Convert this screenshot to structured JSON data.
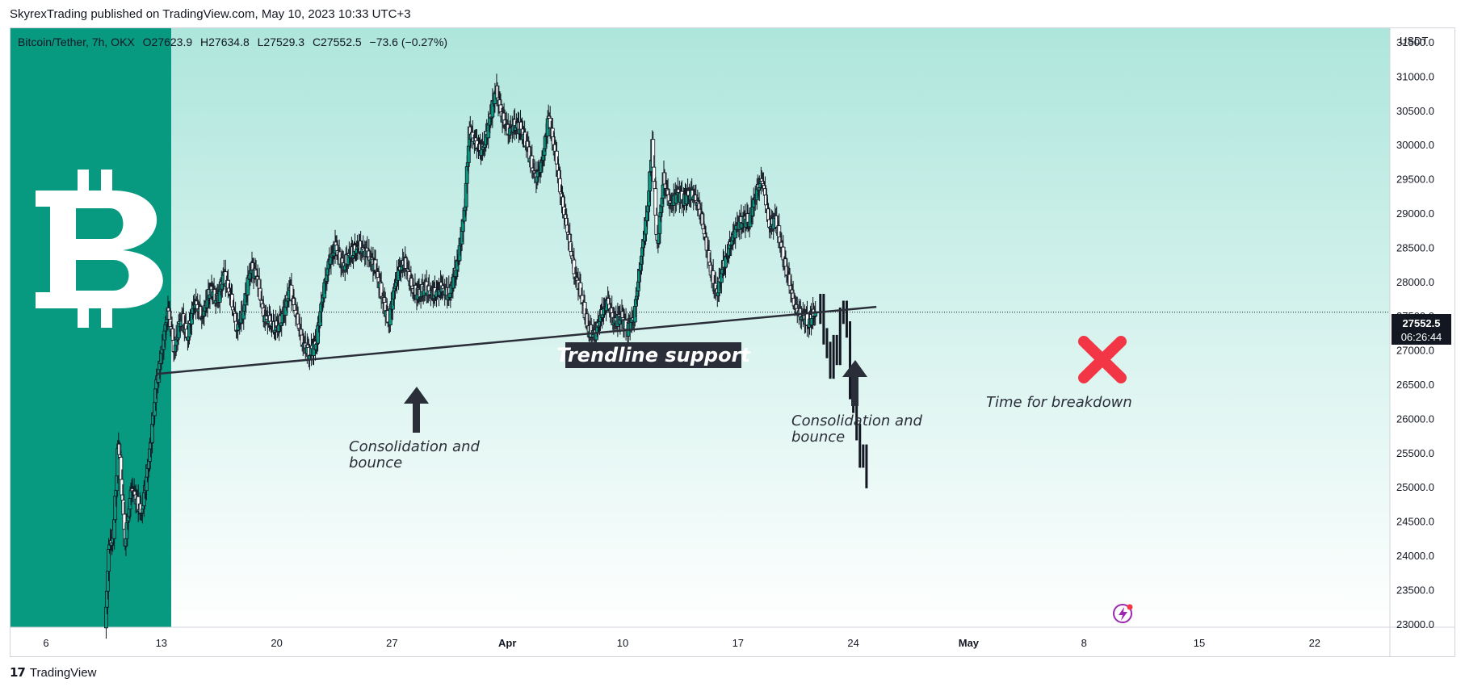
{
  "header": {
    "publish_text": "SkyrexTrading published on TradingView.com, May 10, 2023 10:33 UTC+3"
  },
  "legend": {
    "symbol": "Bitcoin/Tether, 7h, OKX",
    "open": "O27623.9",
    "high": "H27634.8",
    "low": "L27529.3",
    "close": "C27552.5",
    "change": "−73.6 (−0.27%)"
  },
  "price_axis": {
    "currency": "USDT",
    "current_price": "27552.5",
    "countdown": "06:26:44"
  },
  "annotations": {
    "trendline_label": "Trendline support",
    "consolidation_1": [
      "Consolidation and",
      "bounce"
    ],
    "consolidation_2": [
      "Consolidation and",
      "bounce"
    ],
    "breakdown": "Time for breakdown"
  },
  "footer": {
    "brand": "TradingView"
  },
  "colors": {
    "bull": "#089981",
    "bear": "#ffffff",
    "banner": "#089981",
    "bg_top": "#aee6dc",
    "bg_bottom": "#ffffff",
    "cross": "#f23645",
    "annotation": "#2a2e39"
  },
  "icons": {
    "banner": "bitcoin-logo-icon",
    "lightning": "lightning-icon"
  },
  "chart_data": {
    "type": "candlestick",
    "ylim": [
      22950,
      31700
    ],
    "y_ticks": [
      31500,
      31000,
      30500,
      30000,
      29500,
      29000,
      28500,
      28000,
      27500,
      27000,
      26500,
      26000,
      25500,
      25000,
      24500,
      24000,
      23500,
      23000
    ],
    "x_ticks": [
      {
        "label": "6",
        "bold": false
      },
      {
        "label": "13",
        "bold": false
      },
      {
        "label": "20",
        "bold": false
      },
      {
        "label": "27",
        "bold": false
      },
      {
        "label": "Apr",
        "bold": true
      },
      {
        "label": "10",
        "bold": false
      },
      {
        "label": "17",
        "bold": false
      },
      {
        "label": "24",
        "bold": false
      },
      {
        "label": "May",
        "bold": true
      },
      {
        "label": "8",
        "bold": false
      },
      {
        "label": "15",
        "bold": false
      },
      {
        "label": "22",
        "bold": false
      }
    ],
    "close_path": [
      [
        3.6,
        22900
      ],
      [
        3.8,
        24100
      ],
      [
        4.1,
        24300
      ],
      [
        4.4,
        25700
      ],
      [
        4.8,
        24200
      ],
      [
        5.2,
        25000
      ],
      [
        5.8,
        24600
      ],
      [
        6.3,
        25500
      ],
      [
        6.7,
        26500
      ],
      [
        7.0,
        26900
      ],
      [
        7.4,
        27600
      ],
      [
        7.8,
        27000
      ],
      [
        8.2,
        27500
      ],
      [
        8.6,
        27200
      ],
      [
        9.0,
        27700
      ],
      [
        9.5,
        27500
      ],
      [
        10.0,
        27900
      ],
      [
        10.4,
        27700
      ],
      [
        10.8,
        28100
      ],
      [
        11.2,
        27800
      ],
      [
        11.6,
        27300
      ],
      [
        12.0,
        27600
      ],
      [
        12.4,
        28200
      ],
      [
        12.8,
        28100
      ],
      [
        13.2,
        27500
      ],
      [
        13.6,
        27400
      ],
      [
        14.0,
        27300
      ],
      [
        14.4,
        27500
      ],
      [
        14.8,
        27900
      ],
      [
        15.2,
        27500
      ],
      [
        15.6,
        27100
      ],
      [
        16.0,
        26950
      ],
      [
        16.4,
        27100
      ],
      [
        16.8,
        27800
      ],
      [
        17.2,
        28300
      ],
      [
        17.6,
        28500
      ],
      [
        18.0,
        28200
      ],
      [
        18.5,
        28400
      ],
      [
        19.0,
        28500
      ],
      [
        19.5,
        28400
      ],
      [
        20.0,
        28200
      ],
      [
        20.4,
        27800
      ],
      [
        20.8,
        27400
      ],
      [
        21.3,
        28100
      ],
      [
        21.8,
        28300
      ],
      [
        22.2,
        27900
      ],
      [
        22.6,
        27800
      ],
      [
        23.0,
        27900
      ],
      [
        23.5,
        27800
      ],
      [
        24.0,
        27900
      ],
      [
        24.5,
        27800
      ],
      [
        25.0,
        28300
      ],
      [
        25.4,
        29000
      ],
      [
        25.7,
        30200
      ],
      [
        26.1,
        30000
      ],
      [
        26.5,
        29900
      ],
      [
        26.9,
        30300
      ],
      [
        27.3,
        30800
      ],
      [
        27.7,
        30400
      ],
      [
        28.1,
        30200
      ],
      [
        28.5,
        30300
      ],
      [
        28.9,
        30200
      ],
      [
        29.3,
        29900
      ],
      [
        29.7,
        29500
      ],
      [
        30.1,
        29700
      ],
      [
        30.5,
        30400
      ],
      [
        30.9,
        29900
      ],
      [
        31.3,
        29200
      ],
      [
        31.7,
        28700
      ],
      [
        32.1,
        28100
      ],
      [
        32.5,
        27800
      ],
      [
        32.9,
        27300
      ],
      [
        33.3,
        27200
      ],
      [
        33.7,
        27500
      ],
      [
        34.1,
        27700
      ],
      [
        34.5,
        27400
      ],
      [
        34.9,
        27500
      ],
      [
        35.3,
        27300
      ],
      [
        35.7,
        27500
      ],
      [
        36.1,
        28300
      ],
      [
        36.5,
        29000
      ],
      [
        36.8,
        30000
      ],
      [
        37.1,
        28500
      ],
      [
        37.5,
        29500
      ],
      [
        37.9,
        29100
      ],
      [
        38.3,
        29300
      ],
      [
        38.7,
        29200
      ],
      [
        39.1,
        29300
      ],
      [
        39.5,
        29200
      ],
      [
        39.9,
        28800
      ],
      [
        40.3,
        28200
      ],
      [
        40.7,
        27800
      ],
      [
        41.1,
        28200
      ],
      [
        41.5,
        28500
      ],
      [
        41.9,
        28800
      ],
      [
        42.3,
        28900
      ],
      [
        42.7,
        28900
      ],
      [
        43.1,
        29300
      ],
      [
        43.5,
        29500
      ],
      [
        43.9,
        28800
      ],
      [
        44.3,
        28900
      ],
      [
        44.7,
        28400
      ],
      [
        45.1,
        28000
      ],
      [
        45.5,
        27600
      ],
      [
        45.9,
        27500
      ],
      [
        46.3,
        27400
      ],
      [
        46.7,
        27560
      ]
    ],
    "projection": [
      [
        46.8,
        27500
      ],
      [
        47.0,
        27700
      ],
      [
        47.2,
        27200
      ],
      [
        47.4,
        27000
      ],
      [
        47.6,
        26700
      ],
      [
        47.8,
        27100
      ],
      [
        48.0,
        26900
      ],
      [
        48.2,
        27500
      ],
      [
        48.4,
        27600
      ],
      [
        48.6,
        27300
      ],
      [
        48.8,
        26400
      ],
      [
        49.0,
        26200
      ],
      [
        49.2,
        25800
      ],
      [
        49.4,
        25400
      ],
      [
        49.6,
        25500
      ],
      [
        49.8,
        25100
      ]
    ],
    "trendline": {
      "x": [
        6.7,
        50.4
      ],
      "y": [
        26650,
        27630
      ]
    }
  }
}
